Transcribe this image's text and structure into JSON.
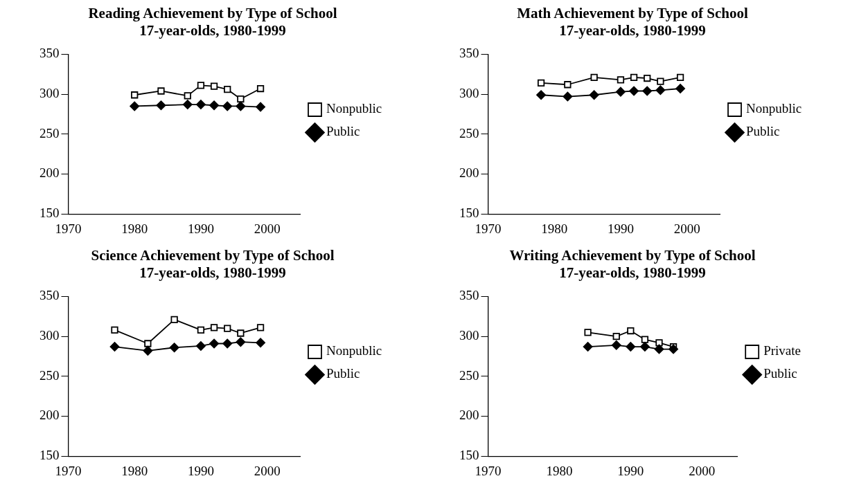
{
  "chart_data": [
    {
      "type": "line",
      "title": "Reading Achievement by Type of School",
      "subtitle": "17-year-olds, 1980-1999",
      "xlim": [
        1970,
        2005
      ],
      "xticks": [
        1970,
        1980,
        1990,
        2000
      ],
      "ylim": [
        150,
        350
      ],
      "yticks": [
        150,
        200,
        250,
        300,
        350
      ],
      "legend": "right",
      "grid": false,
      "series": [
        {
          "name": "Nonpublic",
          "color": "#000000",
          "marker": "square",
          "x": [
            1980,
            1984,
            1988,
            1990,
            1992,
            1994,
            1996,
            1999
          ],
          "values": [
            299,
            304,
            298,
            311,
            310,
            306,
            294,
            307
          ]
        },
        {
          "name": "Public",
          "color": "#000000",
          "marker": "diamond",
          "x": [
            1980,
            1984,
            1988,
            1990,
            1992,
            1994,
            1996,
            1999
          ],
          "values": [
            285,
            286,
            287,
            287,
            286,
            285,
            285,
            284
          ]
        }
      ]
    },
    {
      "type": "line",
      "title": "Math Achievement by Type of School",
      "subtitle": "17-year-olds, 1980-1999",
      "xlim": [
        1970,
        2005
      ],
      "xticks": [
        1970,
        1980,
        1990,
        2000
      ],
      "ylim": [
        150,
        350
      ],
      "yticks": [
        150,
        200,
        250,
        300,
        350
      ],
      "legend": "right",
      "grid": false,
      "series": [
        {
          "name": "Nonpublic",
          "color": "#000000",
          "marker": "square",
          "x": [
            1978,
            1982,
            1986,
            1990,
            1992,
            1994,
            1996,
            1999
          ],
          "values": [
            314,
            312,
            321,
            318,
            321,
            320,
            316,
            321
          ]
        },
        {
          "name": "Public",
          "color": "#000000",
          "marker": "diamond",
          "x": [
            1978,
            1982,
            1986,
            1990,
            1992,
            1994,
            1996,
            1999
          ],
          "values": [
            299,
            297,
            299,
            303,
            304,
            304,
            305,
            307
          ]
        }
      ]
    },
    {
      "type": "line",
      "title": "Science Achievement by Type of School",
      "subtitle": "17-year-olds, 1980-1999",
      "xlim": [
        1970,
        2005
      ],
      "xticks": [
        1970,
        1980,
        1990,
        2000
      ],
      "ylim": [
        150,
        350
      ],
      "yticks": [
        150,
        200,
        250,
        300,
        350
      ],
      "legend": "right",
      "grid": false,
      "series": [
        {
          "name": "Nonpublic",
          "color": "#000000",
          "marker": "square",
          "x": [
            1977,
            1982,
            1986,
            1990,
            1992,
            1994,
            1996,
            1999
          ],
          "values": [
            308,
            291,
            321,
            308,
            311,
            310,
            304,
            311
          ]
        },
        {
          "name": "Public",
          "color": "#000000",
          "marker": "diamond",
          "x": [
            1977,
            1982,
            1986,
            1990,
            1992,
            1994,
            1996,
            1999
          ],
          "values": [
            287,
            282,
            286,
            288,
            291,
            291,
            293,
            292
          ]
        }
      ]
    },
    {
      "type": "line",
      "title": "Writing Achievement by Type of School",
      "subtitle": "17-year-olds, 1980-1999",
      "xlim": [
        1970,
        2005
      ],
      "xticks": [
        1970,
        1980,
        1990,
        2000
      ],
      "ylim": [
        150,
        350
      ],
      "yticks": [
        150,
        200,
        250,
        300,
        350
      ],
      "legend": "right",
      "grid": false,
      "series": [
        {
          "name": "Private",
          "color": "#000000",
          "marker": "square",
          "x": [
            1984,
            1988,
            1990,
            1992,
            1994,
            1996
          ],
          "values": [
            305,
            300,
            307,
            296,
            292,
            287
          ]
        },
        {
          "name": "Public",
          "color": "#000000",
          "marker": "diamond",
          "x": [
            1984,
            1988,
            1990,
            1992,
            1994,
            1996
          ],
          "values": [
            287,
            289,
            287,
            287,
            284,
            284
          ]
        }
      ]
    }
  ]
}
